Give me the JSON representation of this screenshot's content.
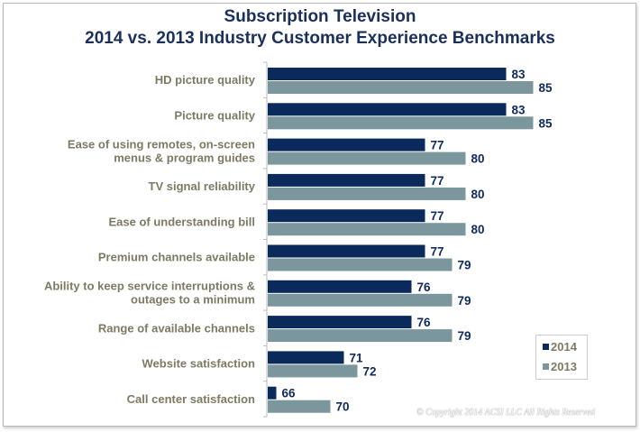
{
  "chart_data": {
    "type": "bar",
    "orientation": "horizontal",
    "title": "Subscription Television",
    "subtitle": "2014 vs. 2013 Industry Customer Experience Benchmarks",
    "categories": [
      [
        "HD picture quality"
      ],
      [
        "Picture quality"
      ],
      [
        "Ease of using remotes, on-screen",
        "menus & program guides"
      ],
      [
        "TV signal reliability"
      ],
      [
        "Ease of understanding bill"
      ],
      [
        "Premium channels available"
      ],
      [
        "Ability to keep service interruptions &",
        "outages to a minimum"
      ],
      [
        "Range of available channels"
      ],
      [
        "Website satisfaction"
      ],
      [
        "Call center satisfaction"
      ]
    ],
    "series": [
      {
        "name": "2014",
        "color": "#0b2a5c",
        "values": [
          83,
          83,
          77,
          77,
          77,
          77,
          76,
          76,
          71,
          66
        ]
      },
      {
        "name": "2013",
        "color": "#7b979d",
        "values": [
          85,
          85,
          80,
          80,
          80,
          79,
          79,
          79,
          72,
          70
        ]
      }
    ],
    "xlim": [
      65,
      87
    ],
    "grid": false,
    "data_labels": true,
    "legend_position": "bottom-right"
  },
  "copyright": "© Copyright 2014 ACSI LLC All Rights Reserved"
}
